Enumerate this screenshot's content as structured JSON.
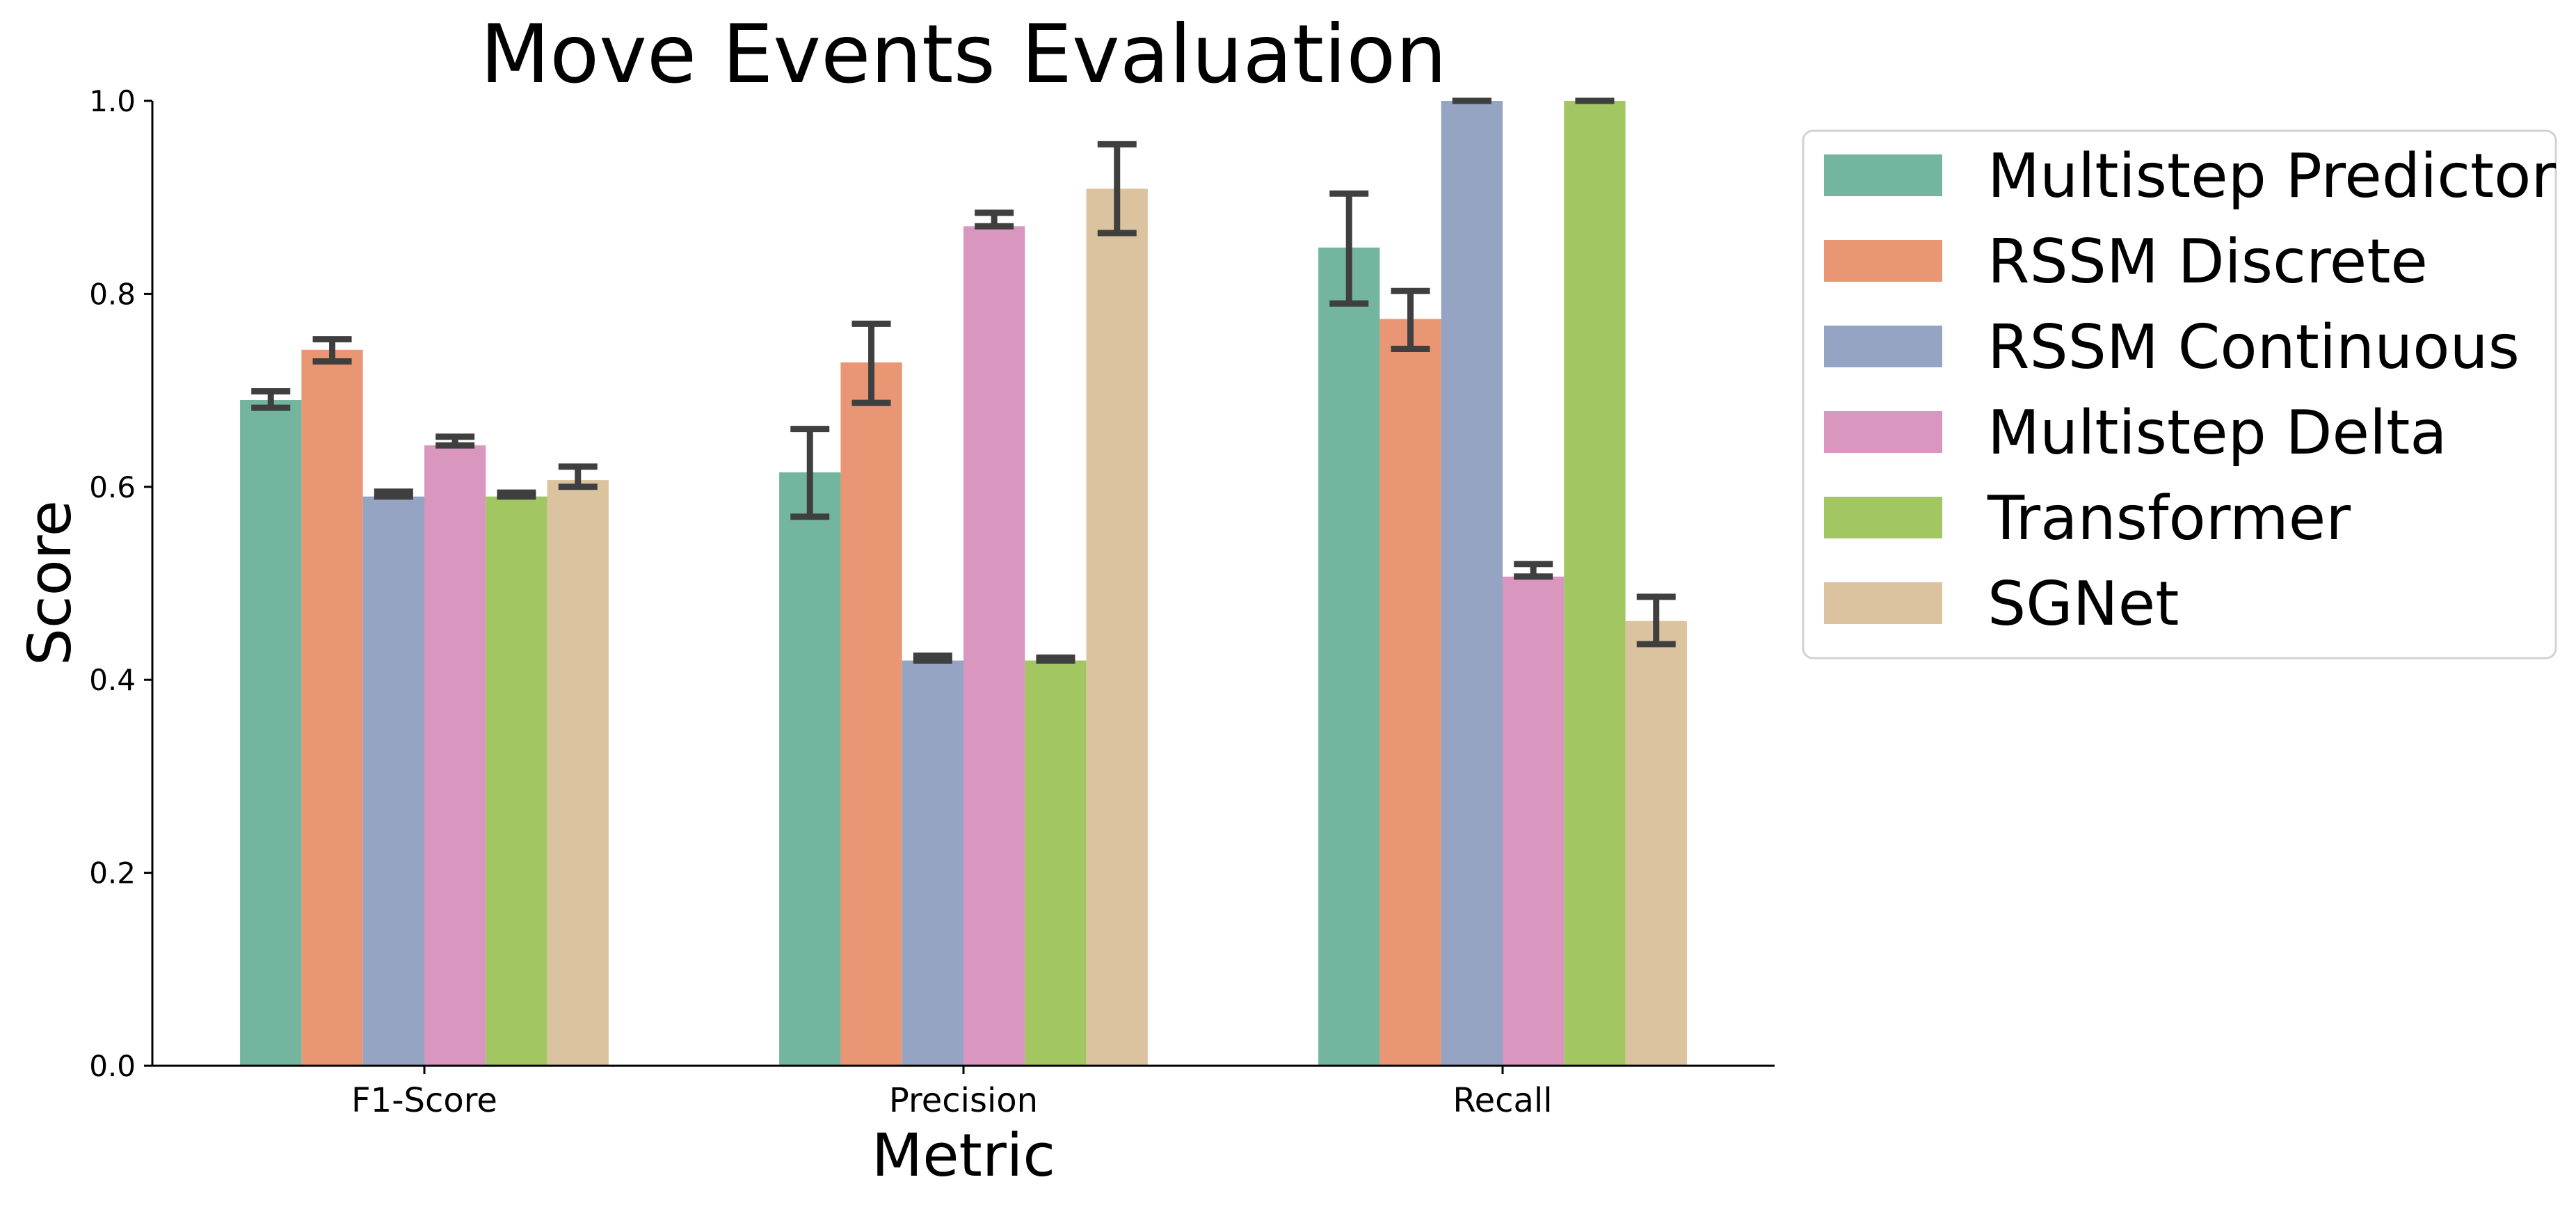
{
  "chart_data": {
    "type": "bar",
    "title": "Move Events Evaluation",
    "xlabel": "Metric",
    "ylabel": "Score",
    "ylim": [
      0,
      1.0
    ],
    "yticks": [
      "0.0",
      "0.2",
      "0.4",
      "0.6",
      "0.8",
      "1.0"
    ],
    "categories": [
      "F1-Score",
      "Precision",
      "Recall"
    ],
    "grid": false,
    "legend_position": "outside-right",
    "series": [
      {
        "name": "Multistep Predictor",
        "color": "#73b59f",
        "values": [
          0.69,
          0.615,
          0.848
        ],
        "err_low": [
          0.682,
          0.569,
          0.79
        ],
        "err_high": [
          0.699,
          0.66,
          0.904
        ]
      },
      {
        "name": "RSSM Discrete",
        "color": "#e99675",
        "values": [
          0.742,
          0.729,
          0.774
        ],
        "err_low": [
          0.73,
          0.687,
          0.743
        ],
        "err_high": [
          0.753,
          0.769,
          0.803
        ]
      },
      {
        "name": "RSSM Continuous",
        "color": "#95a4c3",
        "values": [
          0.59,
          0.42,
          1.0
        ],
        "err_low": [
          0.59,
          0.42,
          1.0
        ],
        "err_high": [
          0.595,
          0.425,
          1.0
        ]
      },
      {
        "name": "Multistep Delta",
        "color": "#d996be",
        "values": [
          0.643,
          0.87,
          0.507
        ],
        "err_low": [
          0.643,
          0.87,
          0.507
        ],
        "err_high": [
          0.652,
          0.884,
          0.52
        ]
      },
      {
        "name": "Transformer",
        "color": "#a2c762",
        "values": [
          0.59,
          0.42,
          1.0
        ],
        "err_low": [
          0.59,
          0.42,
          1.0
        ],
        "err_high": [
          0.594,
          0.423,
          1.0
        ]
      },
      {
        "name": "SGNet",
        "color": "#dbc39f",
        "values": [
          0.607,
          0.909,
          0.461
        ],
        "err_low": [
          0.6,
          0.863,
          0.437
        ],
        "err_high": [
          0.621,
          0.955,
          0.486
        ]
      }
    ]
  }
}
